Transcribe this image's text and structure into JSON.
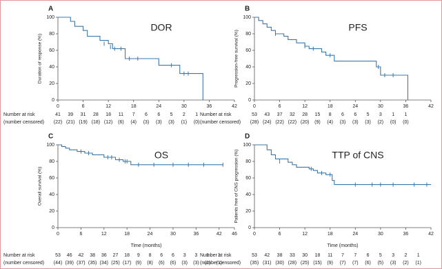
{
  "chart_data": [
    {
      "type": "step",
      "panel": "A",
      "label": "DOR",
      "ylabel": "Duration of response (%)",
      "color": "#3b78a8",
      "x": [
        0,
        3,
        4,
        6,
        7,
        10,
        12,
        13,
        16,
        24,
        29,
        34.5
      ],
      "values": [
        100,
        95,
        89,
        84,
        77,
        72,
        68,
        62,
        50,
        42,
        32,
        0
      ],
      "censor_x": [
        11,
        12.5,
        13.5,
        15,
        17,
        19,
        27,
        30,
        31
      ],
      "censor_y": [
        68,
        64,
        62,
        62,
        50,
        50,
        42,
        32,
        32
      ],
      "xlim": [
        0,
        42
      ],
      "xticks": [
        0,
        6,
        12,
        18,
        24,
        30,
        36,
        42
      ],
      "ylim": [
        0,
        100
      ],
      "yticks": [
        0,
        20,
        40,
        60,
        80,
        100
      ],
      "at_risk": {
        "title": "Number at risk",
        "subtitle": "(number censored)",
        "times": [
          0,
          3,
          6,
          9,
          12,
          15,
          18,
          21,
          24,
          27,
          30,
          33
        ],
        "number": [
          41,
          39,
          31,
          28,
          18,
          11,
          7,
          6,
          6,
          5,
          2,
          1
        ],
        "censored": [
          "(22)",
          "(21)",
          "(19)",
          "(18)",
          "(12)",
          "(6)",
          "(4)",
          "(3)",
          "(3)",
          "(3)",
          "(1)",
          "(0)"
        ]
      }
    },
    {
      "type": "step",
      "panel": "B",
      "label": "PFS",
      "ylabel": "Progression-free survival (%)",
      "color": "#3b78a8",
      "x": [
        0,
        1,
        2,
        3,
        4,
        5,
        7,
        8,
        10,
        12,
        13,
        16,
        17,
        19,
        29,
        30,
        36.5
      ],
      "values": [
        100,
        96,
        92,
        88,
        84,
        80,
        77,
        73,
        69,
        65,
        62,
        58,
        54,
        47,
        40,
        30,
        0
      ],
      "censor_x": [
        5,
        12,
        14,
        18,
        29.5,
        31,
        33
      ],
      "censor_y": [
        80,
        65,
        62,
        54,
        40,
        30,
        30
      ],
      "xlim": [
        0,
        42
      ],
      "xticks": [
        0,
        6,
        12,
        18,
        24,
        30,
        36,
        42
      ],
      "ylim": [
        0,
        100
      ],
      "yticks": [
        0,
        20,
        40,
        60,
        80,
        100
      ],
      "at_risk": {
        "times": [
          0,
          3,
          6,
          9,
          12,
          15,
          18,
          21,
          24,
          27,
          30,
          33,
          36
        ],
        "number": [
          53,
          43,
          37,
          32,
          28,
          15,
          8,
          6,
          6,
          5,
          3,
          1,
          1
        ],
        "censored": [
          "(28)",
          "(24)",
          "(22)",
          "(22)",
          "(20)",
          "(9)",
          "(4)",
          "(3)",
          "(3)",
          "(3)",
          "(2)",
          "(0)",
          "(0)"
        ]
      }
    },
    {
      "type": "step",
      "panel": "C",
      "label": "OS",
      "ylabel": "Overall survival (%)",
      "xlabel": "Time (months)",
      "color": "#3b78a8",
      "x": [
        0,
        1,
        2,
        3,
        5,
        7,
        9,
        12,
        15,
        17,
        19,
        43
      ],
      "values": [
        100,
        98,
        96,
        94,
        92,
        90,
        88,
        85,
        82,
        80,
        76,
        76
      ],
      "censor_x": [
        6,
        8,
        13,
        14,
        16,
        17.5,
        18,
        21,
        25,
        30,
        34,
        38,
        43
      ],
      "censor_y": [
        92,
        90,
        85,
        85,
        82,
        80,
        80,
        76,
        76,
        76,
        76,
        76,
        76
      ],
      "xlim": [
        0,
        46
      ],
      "xticks": [
        0,
        6,
        12,
        18,
        24,
        30,
        36,
        42,
        46
      ],
      "ylim": [
        0,
        100
      ],
      "yticks": [
        0,
        20,
        40,
        60,
        80,
        100
      ],
      "at_risk": {
        "title": "Number at risk",
        "subtitle": "(number censored)",
        "times": [
          0,
          3,
          6,
          9,
          12,
          15,
          18,
          21,
          24,
          27,
          30,
          33,
          36,
          39,
          42
        ],
        "number": [
          53,
          46,
          42,
          38,
          36,
          27,
          18,
          9,
          8,
          6,
          6,
          3,
          3,
          1,
          1
        ],
        "censored": [
          "(44)",
          "(39)",
          "(37)",
          "(35)",
          "(34)",
          "(25)",
          "(17)",
          "(9)",
          "(8)",
          "(6)",
          "(6)",
          "(3)",
          "(3)",
          "(1)",
          "(1)"
        ]
      }
    },
    {
      "type": "step",
      "panel": "D",
      "label": "TTP of CNS",
      "ylabel": "Patients free of CNS progression (%)",
      "xlabel": "Time (months)",
      "color": "#3b78a8",
      "x": [
        0,
        3,
        4,
        5,
        8,
        9,
        10,
        13,
        14,
        15,
        17,
        18.5,
        19,
        42
      ],
      "values": [
        100,
        94,
        88,
        83,
        79,
        76,
        73,
        71,
        69,
        66,
        64,
        57,
        52,
        52
      ],
      "censor_x": [
        6,
        13.5,
        16,
        18,
        24,
        28,
        30,
        33,
        38,
        41
      ],
      "censor_y": [
        80,
        71,
        66,
        64,
        52,
        52,
        52,
        52,
        52,
        52
      ],
      "xlim": [
        0,
        42
      ],
      "xticks": [
        0,
        6,
        12,
        18,
        24,
        30,
        36,
        42
      ],
      "ylim": [
        0,
        100
      ],
      "yticks": [
        0,
        20,
        40,
        60,
        80,
        100
      ],
      "at_risk": {
        "times": [
          0,
          3,
          6,
          9,
          12,
          15,
          18,
          21,
          24,
          27,
          30,
          33,
          36,
          39
        ],
        "number": [
          53,
          42,
          38,
          33,
          30,
          18,
          11,
          7,
          7,
          6,
          5,
          3,
          2,
          1
        ],
        "censored": [
          "(35)",
          "(31)",
          "(30)",
          "(28)",
          "(25)",
          "(15)",
          "(9)",
          "(7)",
          "(7)",
          "(6)",
          "(5)",
          "(3)",
          "(2)",
          "(1)"
        ]
      }
    }
  ]
}
